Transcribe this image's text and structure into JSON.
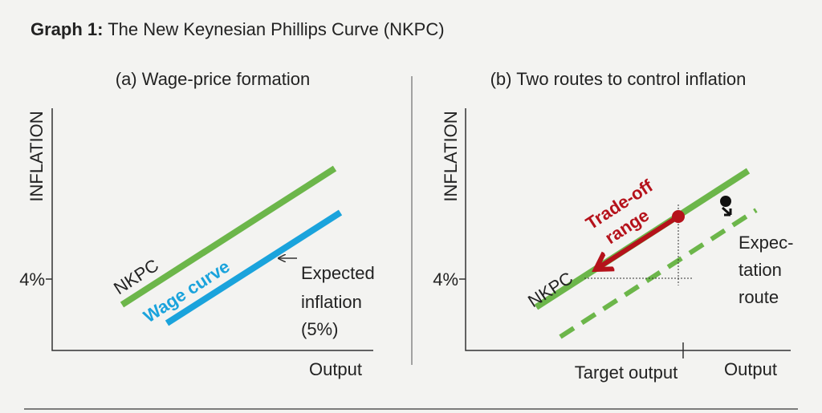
{
  "header": {
    "label": "Graph 1:",
    "title": "The New Keynesian Phillips Curve (NKPC)"
  },
  "panels": [
    {
      "title": "(a) Wage-price formation",
      "y_axis": "INFLATION",
      "x_axis": "Output",
      "y_tick": "4%",
      "curves": [
        "NKPC",
        "Wage curve"
      ],
      "annotation": [
        "Expected",
        "inflation",
        "(5%)"
      ]
    },
    {
      "title": "(b) Two routes to control inflation",
      "y_axis": "INFLATION",
      "x_axis": "Output",
      "y_tick": "4%",
      "x_tick": "Target output",
      "curves": [
        "NKPC"
      ],
      "tradeoff": [
        "Trade-off",
        "range"
      ],
      "annotation": [
        "Expec-",
        "tation",
        "route"
      ]
    }
  ]
}
